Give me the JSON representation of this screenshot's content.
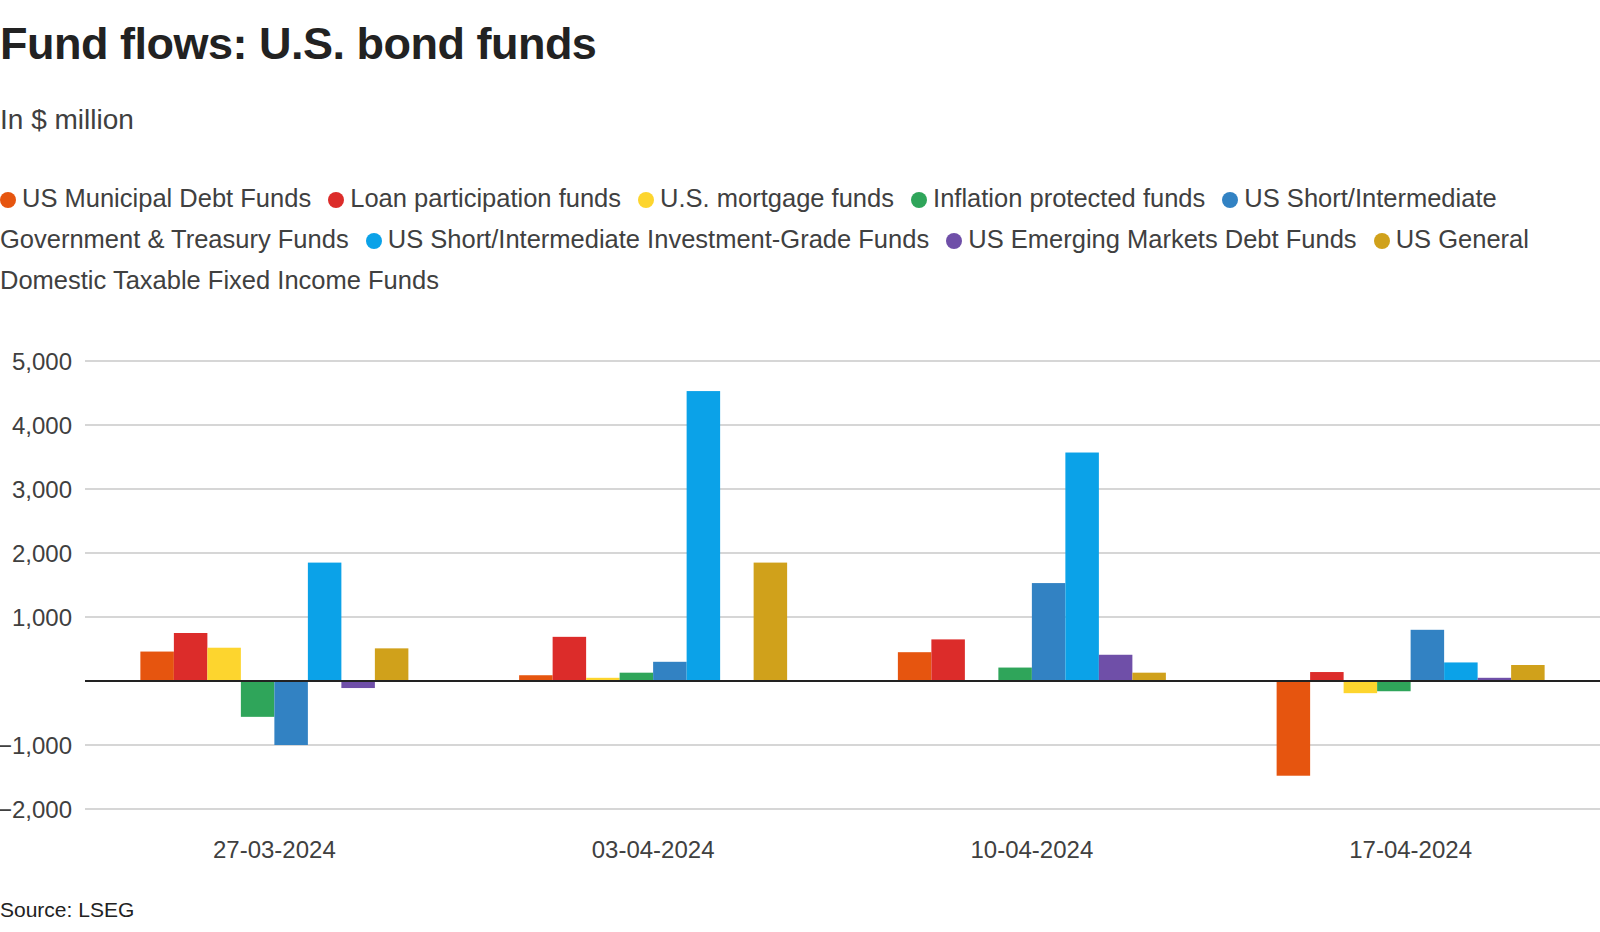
{
  "chart_data": {
    "type": "bar",
    "title": "Fund flows: U.S. bond funds",
    "subtitle": "In $ million",
    "source": "Source: LSEG",
    "categories": [
      "27-03-2024",
      "03-04-2024",
      "10-04-2024",
      "17-04-2024"
    ],
    "series": [
      {
        "name": "US Municipal Debt Funds",
        "color": "#e6550f",
        "values": [
          460,
          90,
          450,
          -1480
        ]
      },
      {
        "name": "Loan participation funds",
        "color": "#dc2c2a",
        "values": [
          750,
          690,
          650,
          140
        ]
      },
      {
        "name": "U.S. mortgage funds",
        "color": "#fdd52e",
        "values": [
          520,
          50,
          null,
          -190
        ]
      },
      {
        "name": "Inflation protected funds",
        "color": "#2fa55a",
        "values": [
          -560,
          130,
          210,
          -160
        ]
      },
      {
        "name": "US Short/Intermediate Government & Treasury Funds",
        "color": "#3282c3",
        "values": [
          -1000,
          300,
          1530,
          800
        ]
      },
      {
        "name": "US Short/Intermediate Investment-Grade Funds",
        "color": "#0ba2e8",
        "values": [
          1850,
          4530,
          3570,
          290
        ]
      },
      {
        "name": "US Emerging Markets Debt Funds",
        "color": "#6f4fa8",
        "values": [
          -110,
          null,
          410,
          50
        ]
      },
      {
        "name": "US General Domestic Taxable Fixed Income Funds",
        "color": "#d0a11b",
        "values": [
          510,
          1850,
          130,
          250
        ]
      }
    ],
    "ylim": [
      -2000,
      5000
    ],
    "yticks": [
      {
        "value": -2000,
        "label": "−2,000"
      },
      {
        "value": -1000,
        "label": "−1,000"
      },
      {
        "value": 1000,
        "label": "1,000"
      },
      {
        "value": 2000,
        "label": "2,000"
      },
      {
        "value": 3000,
        "label": "3,000"
      },
      {
        "value": 4000,
        "label": "4,000"
      },
      {
        "value": 5000,
        "label": "5,000"
      }
    ],
    "grid": true,
    "legend": "top"
  }
}
